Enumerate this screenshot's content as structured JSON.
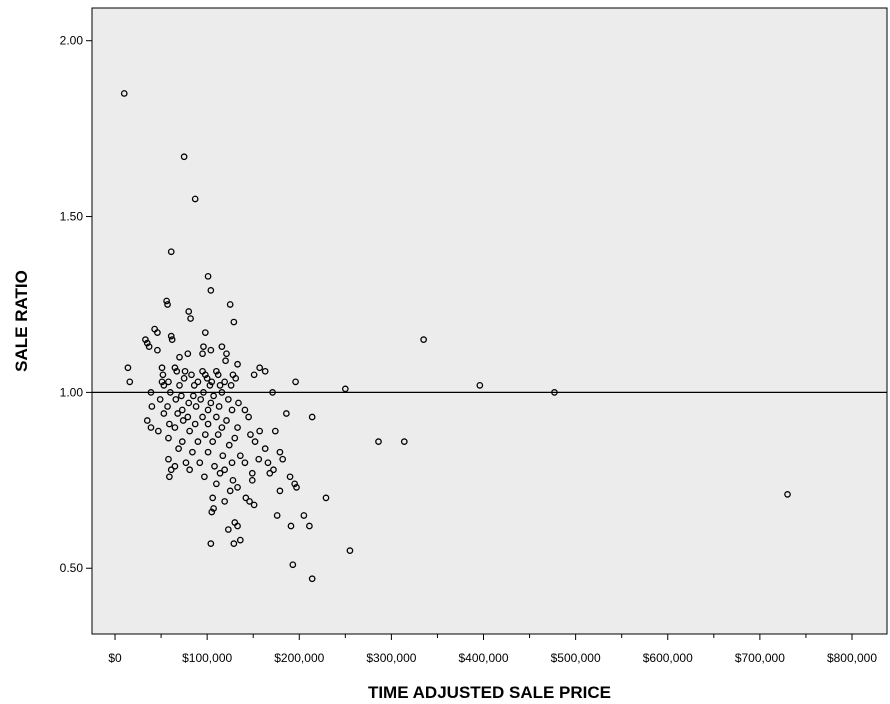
{
  "chart_data": {
    "type": "scatter",
    "xlabel": "TIME ADJUSTED SALE PRICE",
    "ylabel": "SALE RATIO",
    "xlim": [
      -25000,
      838000
    ],
    "ylim": [
      0.313,
      2.093
    ],
    "x_ticks": [
      0,
      100000,
      200000,
      300000,
      400000,
      500000,
      600000,
      700000,
      800000
    ],
    "x_tick_labels": [
      "$0",
      "$100,000",
      "$200,000",
      "$300,000",
      "$400,000",
      "$500,000",
      "$600,000",
      "$700,000",
      "$800,000"
    ],
    "x_minor_ticks": [
      50000,
      150000,
      250000,
      350000,
      450000,
      550000,
      650000,
      750000
    ],
    "y_ticks": [
      0.5,
      1.0,
      1.5,
      2.0
    ],
    "y_tick_labels": [
      "0.50",
      "1.00",
      "1.50",
      "2.00"
    ],
    "reference_line": {
      "y": 1.0
    },
    "grid": false,
    "legend": "none",
    "plot_background": "#ececec",
    "marker_color": "#000000",
    "points": [
      [
        10000,
        1.85
      ],
      [
        75000,
        1.67
      ],
      [
        87000,
        1.55
      ],
      [
        61000,
        1.4
      ],
      [
        101000,
        1.33
      ],
      [
        104000,
        1.29
      ],
      [
        56000,
        1.26
      ],
      [
        57000,
        1.25
      ],
      [
        125000,
        1.25
      ],
      [
        80000,
        1.23
      ],
      [
        82000,
        1.21
      ],
      [
        129000,
        1.2
      ],
      [
        43000,
        1.18
      ],
      [
        46000,
        1.17
      ],
      [
        61000,
        1.16
      ],
      [
        33000,
        1.15
      ],
      [
        62000,
        1.15
      ],
      [
        35000,
        1.14
      ],
      [
        37000,
        1.13
      ],
      [
        98000,
        1.17
      ],
      [
        116000,
        1.13
      ],
      [
        46000,
        1.12
      ],
      [
        96000,
        1.13
      ],
      [
        104000,
        1.12
      ],
      [
        79000,
        1.11
      ],
      [
        95000,
        1.11
      ],
      [
        121000,
        1.11
      ],
      [
        70000,
        1.1
      ],
      [
        120000,
        1.09
      ],
      [
        133000,
        1.08
      ],
      [
        14000,
        1.07
      ],
      [
        51000,
        1.07
      ],
      [
        65000,
        1.07
      ],
      [
        157000,
        1.07
      ],
      [
        67000,
        1.06
      ],
      [
        76000,
        1.06
      ],
      [
        95000,
        1.06
      ],
      [
        110000,
        1.06
      ],
      [
        52000,
        1.05
      ],
      [
        83000,
        1.05
      ],
      [
        98000,
        1.05
      ],
      [
        112000,
        1.05
      ],
      [
        128000,
        1.05
      ],
      [
        151000,
        1.05
      ],
      [
        163000,
        1.06
      ],
      [
        16000,
        1.03
      ],
      [
        51000,
        1.03
      ],
      [
        58000,
        1.03
      ],
      [
        75000,
        1.04
      ],
      [
        90000,
        1.03
      ],
      [
        100000,
        1.04
      ],
      [
        105000,
        1.03
      ],
      [
        119000,
        1.03
      ],
      [
        131000,
        1.04
      ],
      [
        196000,
        1.03
      ],
      [
        53000,
        1.02
      ],
      [
        70000,
        1.02
      ],
      [
        86000,
        1.02
      ],
      [
        103000,
        1.02
      ],
      [
        114000,
        1.02
      ],
      [
        126000,
        1.02
      ],
      [
        250000,
        1.01
      ],
      [
        39000,
        1.0
      ],
      [
        60000,
        1.0
      ],
      [
        72000,
        0.99
      ],
      [
        85000,
        0.99
      ],
      [
        96000,
        1.0
      ],
      [
        107000,
        0.99
      ],
      [
        116000,
        1.0
      ],
      [
        171000,
        1.0
      ],
      [
        477000,
        1.0
      ],
      [
        335000,
        1.15
      ],
      [
        396000,
        1.02
      ],
      [
        49000,
        0.98
      ],
      [
        66000,
        0.98
      ],
      [
        80000,
        0.97
      ],
      [
        93000,
        0.98
      ],
      [
        104000,
        0.97
      ],
      [
        123000,
        0.98
      ],
      [
        134000,
        0.97
      ],
      [
        40000,
        0.96
      ],
      [
        57000,
        0.96
      ],
      [
        73000,
        0.95
      ],
      [
        88000,
        0.96
      ],
      [
        101000,
        0.95
      ],
      [
        113000,
        0.96
      ],
      [
        127000,
        0.95
      ],
      [
        141000,
        0.95
      ],
      [
        186000,
        0.94
      ],
      [
        53000,
        0.94
      ],
      [
        68000,
        0.94
      ],
      [
        79000,
        0.93
      ],
      [
        95000,
        0.93
      ],
      [
        110000,
        0.93
      ],
      [
        121000,
        0.92
      ],
      [
        145000,
        0.93
      ],
      [
        214000,
        0.93
      ],
      [
        35000,
        0.92
      ],
      [
        59000,
        0.91
      ],
      [
        74000,
        0.92
      ],
      [
        87000,
        0.91
      ],
      [
        101000,
        0.91
      ],
      [
        116000,
        0.9
      ],
      [
        133000,
        0.9
      ],
      [
        39000,
        0.9
      ],
      [
        47000,
        0.89
      ],
      [
        65000,
        0.9
      ],
      [
        81000,
        0.89
      ],
      [
        98000,
        0.88
      ],
      [
        112000,
        0.88
      ],
      [
        130000,
        0.87
      ],
      [
        147000,
        0.88
      ],
      [
        157000,
        0.89
      ],
      [
        174000,
        0.89
      ],
      [
        58000,
        0.87
      ],
      [
        73000,
        0.86
      ],
      [
        90000,
        0.86
      ],
      [
        106000,
        0.86
      ],
      [
        124000,
        0.85
      ],
      [
        152000,
        0.86
      ],
      [
        286000,
        0.86
      ],
      [
        314000,
        0.86
      ],
      [
        69000,
        0.84
      ],
      [
        84000,
        0.83
      ],
      [
        101000,
        0.83
      ],
      [
        117000,
        0.82
      ],
      [
        136000,
        0.82
      ],
      [
        163000,
        0.84
      ],
      [
        179000,
        0.83
      ],
      [
        182000,
        0.81
      ],
      [
        58000,
        0.81
      ],
      [
        65000,
        0.79
      ],
      [
        77000,
        0.8
      ],
      [
        92000,
        0.8
      ],
      [
        108000,
        0.79
      ],
      [
        119000,
        0.78
      ],
      [
        127000,
        0.8
      ],
      [
        141000,
        0.8
      ],
      [
        156000,
        0.81
      ],
      [
        166000,
        0.8
      ],
      [
        61000,
        0.78
      ],
      [
        81000,
        0.78
      ],
      [
        114000,
        0.77
      ],
      [
        149000,
        0.77
      ],
      [
        168000,
        0.77
      ],
      [
        172000,
        0.78
      ],
      [
        59000,
        0.76
      ],
      [
        97000,
        0.76
      ],
      [
        128000,
        0.75
      ],
      [
        149000,
        0.75
      ],
      [
        190000,
        0.76
      ],
      [
        110000,
        0.74
      ],
      [
        133000,
        0.73
      ],
      [
        195000,
        0.74
      ],
      [
        197000,
        0.73
      ],
      [
        125000,
        0.72
      ],
      [
        179000,
        0.72
      ],
      [
        229000,
        0.7
      ],
      [
        106000,
        0.7
      ],
      [
        142000,
        0.7
      ],
      [
        146000,
        0.69
      ],
      [
        730000,
        0.71
      ],
      [
        119000,
        0.69
      ],
      [
        151000,
        0.68
      ],
      [
        107000,
        0.67
      ],
      [
        105000,
        0.66
      ],
      [
        176000,
        0.65
      ],
      [
        205000,
        0.65
      ],
      [
        130000,
        0.63
      ],
      [
        133000,
        0.62
      ],
      [
        191000,
        0.62
      ],
      [
        211000,
        0.62
      ],
      [
        123000,
        0.61
      ],
      [
        136000,
        0.58
      ],
      [
        104000,
        0.57
      ],
      [
        129000,
        0.57
      ],
      [
        255000,
        0.55
      ],
      [
        193000,
        0.51
      ],
      [
        214000,
        0.47
      ]
    ]
  }
}
